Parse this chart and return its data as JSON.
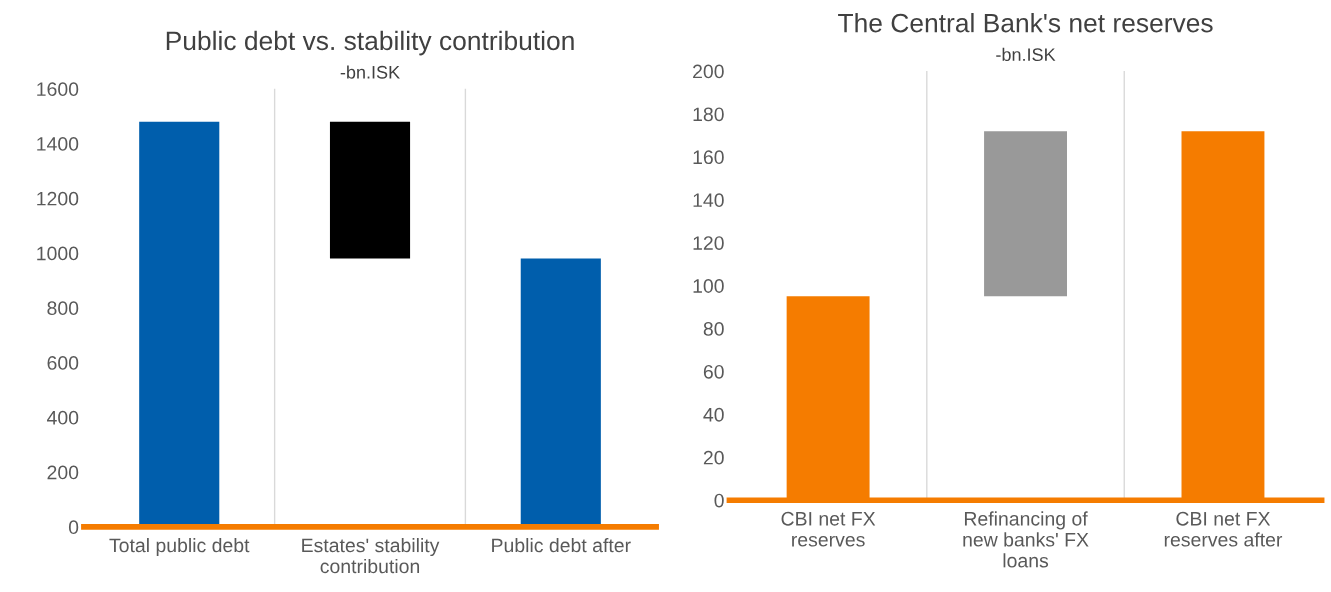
{
  "chart_data": [
    {
      "type": "bar",
      "title": "Public debt vs. stability contribution",
      "subtitle": "-bn.ISK",
      "categories": [
        "Total public debt",
        "Estates' stability\ncontribution",
        "Public debt after"
      ],
      "values": [
        1480,
        500,
        980
      ],
      "base": [
        0,
        980,
        0
      ],
      "colors": [
        "#005eac",
        "#000000",
        "#005eac"
      ],
      "ylim": [
        0,
        1600
      ],
      "yticks": [
        0,
        200,
        400,
        600,
        800,
        1000,
        1200,
        1400,
        1600
      ],
      "grid": "x"
    },
    {
      "type": "bar",
      "title": "The Central Bank's net reserves",
      "subtitle": "-bn.ISK",
      "categories": [
        "CBI net FX\nreserves",
        "Refinancing of\nnew banks' FX\nloans",
        "CBI net FX\nreserves after"
      ],
      "values": [
        95,
        77,
        172
      ],
      "base": [
        0,
        95,
        0
      ],
      "colors": [
        "#f57c00",
        "#999999",
        "#f57c00"
      ],
      "ylim": [
        0,
        200
      ],
      "yticks": [
        0,
        20,
        40,
        60,
        80,
        100,
        120,
        140,
        160,
        180,
        200
      ],
      "grid": "x"
    }
  ]
}
